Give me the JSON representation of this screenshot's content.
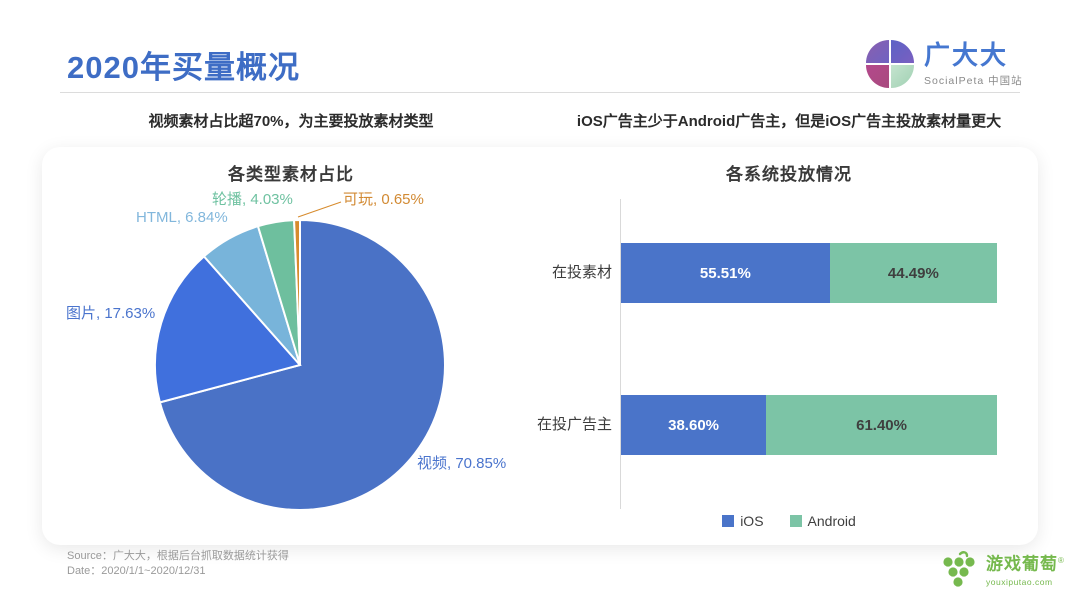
{
  "page": {
    "title": "2020年买量概况",
    "logo": {
      "name": "广大大",
      "sub": "SocialPeta 中国站"
    },
    "subtitle_left": "视频素材占比超70%，为主要投放素材类型",
    "subtitle_right": "iOS广告主少于Android广告主，但是iOS广告主投放素材量更大",
    "footer": {
      "source": "Source：广大大，根据后台抓取数据统计获得",
      "date": "Date：2020/1/1~2020/12/31",
      "brand_name": "游戏葡萄",
      "brand_reg": "®",
      "brand_url": "youxiputao.com"
    }
  },
  "colors": {
    "title_blue": "#3e6dc5",
    "ios_blue": "#4a74c9",
    "android_teal": "#7cc4a6",
    "brand_green": "#76b94e",
    "divider_gray": "#dcdcdc"
  },
  "chart_data": [
    {
      "type": "pie",
      "title": "各类型素材占比",
      "categories": [
        "视频",
        "图片",
        "HTML",
        "轮播",
        "可玩"
      ],
      "values": [
        70.85,
        17.63,
        6.84,
        4.03,
        0.65
      ],
      "colors": [
        "#4a72c6",
        "#4070dd",
        "#78b4da",
        "#6ebf9e",
        "#d78b2d"
      ],
      "labels": [
        "视频, 70.85%",
        "图片, 17.63%",
        "HTML, 6.84%",
        "轮播, 4.03%",
        "可玩, 0.65%"
      ],
      "start_angle_deg": 0,
      "direction": "clockwise-from-top",
      "leader_line_slice": "可玩"
    },
    {
      "type": "bar",
      "title": "各系统投放情况",
      "orientation": "horizontal-stacked-100pct",
      "categories": [
        "在投素材",
        "在投广告主"
      ],
      "series": [
        {
          "name": "iOS",
          "color": "#4a74c9",
          "values": [
            55.51,
            38.6
          ]
        },
        {
          "name": "Android",
          "color": "#7cc4a6",
          "values": [
            44.49,
            61.4
          ]
        }
      ],
      "value_labels": [
        [
          "55.51%",
          "44.49%"
        ],
        [
          "38.60%",
          "61.40%"
        ]
      ],
      "legend": [
        "iOS",
        "Android"
      ],
      "legend_position": "bottom",
      "xlim": [
        0,
        100
      ],
      "grid": false
    }
  ]
}
